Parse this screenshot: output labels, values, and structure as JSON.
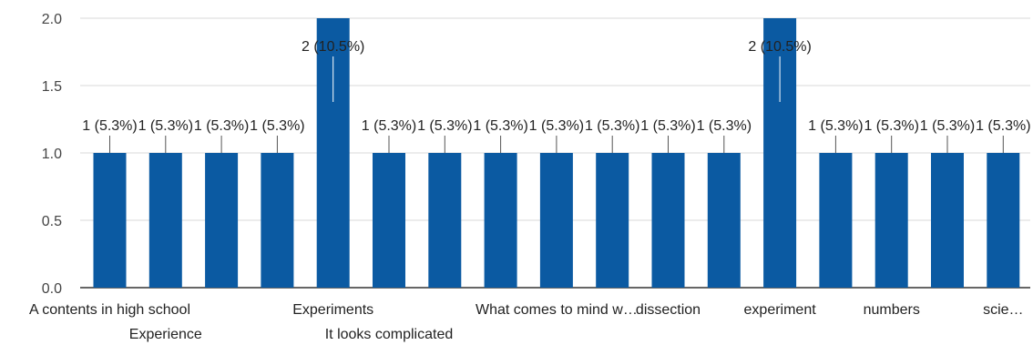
{
  "chart_data": {
    "type": "bar",
    "categories": [
      "A contents in high school",
      "Experience",
      "",
      "",
      "Experiments",
      "It looks complicated",
      "",
      "",
      "What comes to mind w…",
      "",
      "dissection",
      "",
      "experiment",
      "",
      "numbers",
      "",
      "scie…"
    ],
    "values": [
      1,
      1,
      1,
      1,
      2,
      1,
      1,
      1,
      1,
      1,
      1,
      1,
      2,
      1,
      1,
      1,
      1
    ],
    "data_labels": [
      "1 (5.3%)",
      "1 (5.3%)",
      "1 (5.3%)",
      "1 (5.3%)",
      "2 (10.5%)",
      "1 (5.3%)",
      "1 (5.3%)",
      "1 (5.3%)",
      "1 (5.3%)",
      "1 (5.3%)",
      "1 (5.3%)",
      "1 (5.3%)",
      "2 (10.5%)",
      "1 (5.3%)",
      "1 (5.3%)",
      "1 (5.3%)",
      "1 (5.3%)"
    ],
    "yticks": [
      "0.0",
      "0.5",
      "1.0",
      "1.5",
      "2.0"
    ],
    "ylim": [
      0,
      2
    ],
    "grid": true,
    "bar_color": "#0b5aa2",
    "title": "",
    "xlabel": "",
    "ylabel": ""
  }
}
